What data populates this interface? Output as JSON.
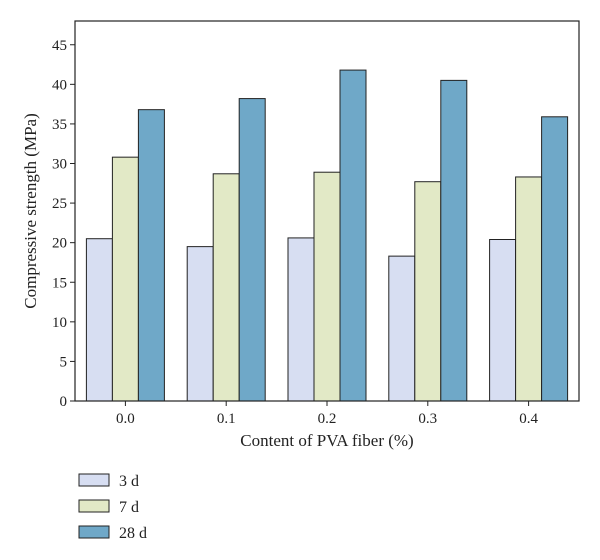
{
  "chart_data": {
    "type": "bar",
    "categories": [
      "0.0",
      "0.1",
      "0.2",
      "0.3",
      "0.4"
    ],
    "series": [
      {
        "name": "3 d",
        "values": [
          20.5,
          19.5,
          20.6,
          18.3,
          20.4
        ],
        "color": "#d7def2"
      },
      {
        "name": "7 d",
        "values": [
          30.8,
          28.7,
          28.9,
          27.7,
          28.3
        ],
        "color": "#e2e9c6"
      },
      {
        "name": "28 d",
        "values": [
          36.8,
          38.2,
          41.8,
          40.5,
          35.9
        ],
        "color": "#6fa8c8"
      }
    ],
    "xlabel": "Content of PVA fiber (%)",
    "ylabel": "Compressive strength (MPa)",
    "ylim": [
      0,
      48
    ],
    "yticks": [
      "0",
      "5",
      "10",
      "15",
      "20",
      "25",
      "30",
      "35",
      "40",
      "45"
    ],
    "grid": false,
    "legend": "bottom-left"
  }
}
